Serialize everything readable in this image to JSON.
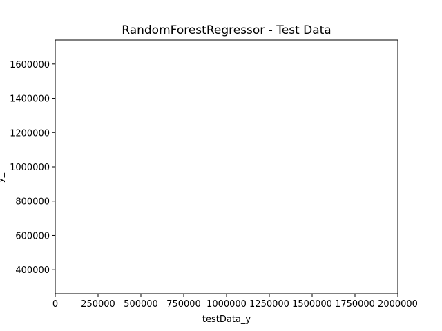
{
  "chart_data": {
    "type": "scatter",
    "title": "RandomForestRegressor - Test Data",
    "xlabel": "testData_y",
    "ylabel": "y_",
    "xlim": [
      0,
      2000000
    ],
    "ylim": [
      260000,
      1740000
    ],
    "x_ticks": [
      0,
      250000,
      500000,
      750000,
      1000000,
      1250000,
      1500000,
      1750000,
      2000000
    ],
    "x_tick_labels": [
      "0",
      "250000",
      "500000",
      "750000",
      "1000000",
      "1250000",
      "1500000",
      "1750000",
      "2000000"
    ],
    "y_ticks": [
      400000,
      600000,
      800000,
      1000000,
      1200000,
      1400000,
      1600000
    ],
    "y_tick_labels": [
      "400000",
      "600000",
      "800000",
      "1000000",
      "1200000",
      "1400000",
      "1600000"
    ],
    "grid": false,
    "series": [
      {
        "x": [],
        "y": []
      }
    ]
  }
}
